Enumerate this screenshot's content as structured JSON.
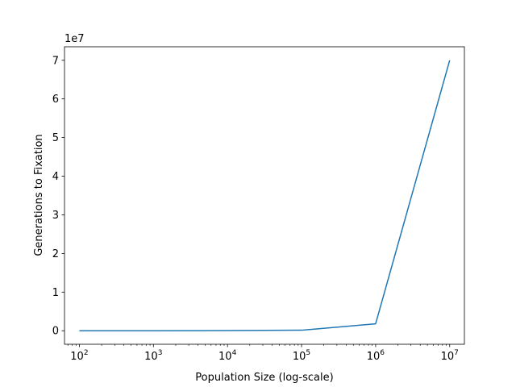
{
  "chart_data": {
    "type": "line",
    "title": "",
    "xlabel": "Population Size (log-scale)",
    "ylabel": "Generations to Fixation",
    "x_scale": "log",
    "y_offset_label": "1e7",
    "x": [
      100,
      1000,
      10000,
      100000,
      1000000,
      10000000
    ],
    "series": [
      {
        "values": [
          400,
          4000,
          40000,
          140000,
          1800000,
          70000000
        ]
      }
    ],
    "xlim": [
      63,
      15800000
    ],
    "ylim": [
      -3500000,
      73500000
    ],
    "x_ticks": [
      {
        "base": "10",
        "exp": "2",
        "value": 100
      },
      {
        "base": "10",
        "exp": "3",
        "value": 1000
      },
      {
        "base": "10",
        "exp": "4",
        "value": 10000
      },
      {
        "base": "10",
        "exp": "5",
        "value": 100000
      },
      {
        "base": "10",
        "exp": "6",
        "value": 1000000
      },
      {
        "base": "10",
        "exp": "7",
        "value": 10000000
      }
    ],
    "y_ticks": [
      {
        "label": "0",
        "value": 0
      },
      {
        "label": "1",
        "value": 10000000
      },
      {
        "label": "2",
        "value": 20000000
      },
      {
        "label": "3",
        "value": 30000000
      },
      {
        "label": "4",
        "value": 40000000
      },
      {
        "label": "5",
        "value": 50000000
      },
      {
        "label": "6",
        "value": 60000000
      },
      {
        "label": "7",
        "value": 70000000
      }
    ],
    "grid": false,
    "line_color": "#1f77b4"
  }
}
